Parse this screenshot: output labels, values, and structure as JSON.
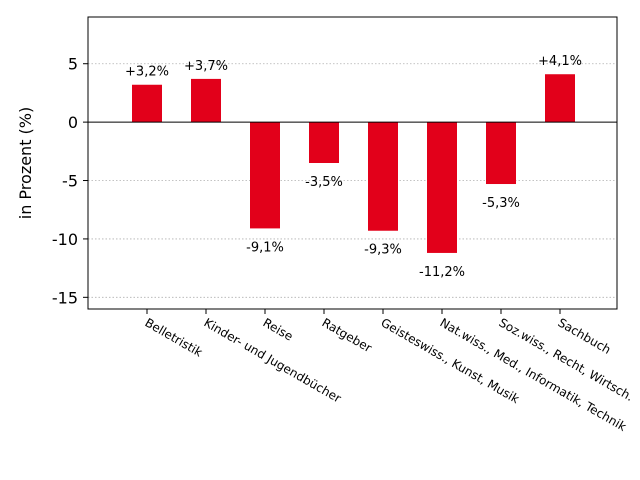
{
  "chart_data": {
    "type": "bar",
    "title": "",
    "xlabel": "",
    "ylabel": "in Prozent (%)",
    "ylim": [
      -16,
      9
    ],
    "yticks": [
      5,
      0,
      -5,
      -10,
      -15
    ],
    "ytick_labels": [
      "5",
      "0",
      "-5",
      "-10",
      "-15"
    ],
    "grid": "horizontal dotted",
    "bar_color": "#e2001a",
    "categories": [
      "Belletristik",
      "Kinder- und Jugendbücher",
      "Reise",
      "Ratgeber",
      "Geisteswiss., Kunst, Musik",
      "Nat.wiss., Med., Informatik, Technik",
      "Soz.wiss., Recht, Wirtsch.",
      "Sachbuch"
    ],
    "values": [
      3.2,
      3.7,
      -9.1,
      -3.5,
      -9.3,
      -11.2,
      -5.3,
      4.1
    ],
    "data_labels": [
      "+3,2%",
      "+3,7%",
      "-9,1%",
      "-3,5%",
      "-9,3%",
      "-11,2%",
      "-5,3%",
      "+4,1%"
    ]
  }
}
